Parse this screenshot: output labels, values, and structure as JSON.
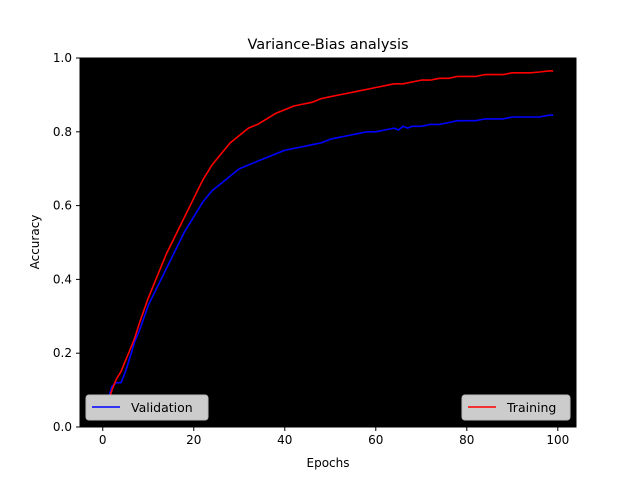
{
  "chart_data": {
    "type": "line",
    "title": "Variance-Bias analysis",
    "xlabel": "Epochs",
    "ylabel": "Accuracy",
    "xlim": [
      -5,
      104
    ],
    "ylim": [
      0.0,
      1.0
    ],
    "xticks": [
      0,
      20,
      40,
      60,
      80,
      100
    ],
    "yticks": [
      0.0,
      0.2,
      0.4,
      0.6,
      0.8,
      1.0
    ],
    "xtick_labels": [
      "0",
      "20",
      "40",
      "60",
      "80",
      "100"
    ],
    "ytick_labels": [
      "0.0",
      "0.2",
      "0.4",
      "0.6",
      "0.8",
      "1.0"
    ],
    "grid": false,
    "plot_background": "#000000",
    "series": [
      {
        "name": "Validation",
        "color": "#0000ff",
        "legend_position": "lower-left",
        "x": [
          1,
          2,
          3,
          4,
          5,
          6,
          7,
          8,
          10,
          12,
          14,
          16,
          18,
          20,
          22,
          24,
          26,
          28,
          30,
          32,
          34,
          36,
          38,
          40,
          42,
          44,
          46,
          48,
          50,
          52,
          54,
          56,
          58,
          60,
          62,
          64,
          65,
          66,
          67,
          68,
          70,
          72,
          74,
          76,
          78,
          80,
          82,
          84,
          86,
          88,
          90,
          92,
          94,
          96,
          98,
          99
        ],
        "y": [
          0.07,
          0.11,
          0.12,
          0.12,
          0.15,
          0.19,
          0.23,
          0.26,
          0.33,
          0.38,
          0.43,
          0.48,
          0.53,
          0.57,
          0.61,
          0.64,
          0.66,
          0.68,
          0.7,
          0.71,
          0.72,
          0.73,
          0.74,
          0.75,
          0.755,
          0.76,
          0.765,
          0.77,
          0.78,
          0.785,
          0.79,
          0.795,
          0.8,
          0.8,
          0.805,
          0.81,
          0.805,
          0.815,
          0.81,
          0.815,
          0.815,
          0.82,
          0.82,
          0.825,
          0.83,
          0.83,
          0.83,
          0.835,
          0.835,
          0.835,
          0.84,
          0.84,
          0.84,
          0.84,
          0.845,
          0.845
        ]
      },
      {
        "name": "Training",
        "color": "#ff0000",
        "legend_position": "lower-right",
        "x": [
          1,
          2,
          3,
          4,
          5,
          6,
          7,
          8,
          10,
          12,
          14,
          16,
          18,
          20,
          22,
          24,
          26,
          28,
          30,
          32,
          34,
          36,
          38,
          40,
          42,
          44,
          46,
          48,
          50,
          52,
          54,
          56,
          58,
          60,
          62,
          64,
          66,
          68,
          70,
          72,
          74,
          76,
          78,
          80,
          82,
          84,
          86,
          88,
          90,
          92,
          94,
          96,
          98,
          99
        ],
        "y": [
          0.06,
          0.1,
          0.13,
          0.15,
          0.18,
          0.21,
          0.24,
          0.28,
          0.35,
          0.41,
          0.47,
          0.52,
          0.57,
          0.62,
          0.67,
          0.71,
          0.74,
          0.77,
          0.79,
          0.81,
          0.82,
          0.835,
          0.85,
          0.86,
          0.87,
          0.875,
          0.88,
          0.89,
          0.895,
          0.9,
          0.905,
          0.91,
          0.915,
          0.92,
          0.925,
          0.93,
          0.93,
          0.935,
          0.94,
          0.94,
          0.945,
          0.945,
          0.95,
          0.95,
          0.95,
          0.955,
          0.955,
          0.955,
          0.96,
          0.96,
          0.96,
          0.962,
          0.965,
          0.965
        ]
      }
    ]
  }
}
